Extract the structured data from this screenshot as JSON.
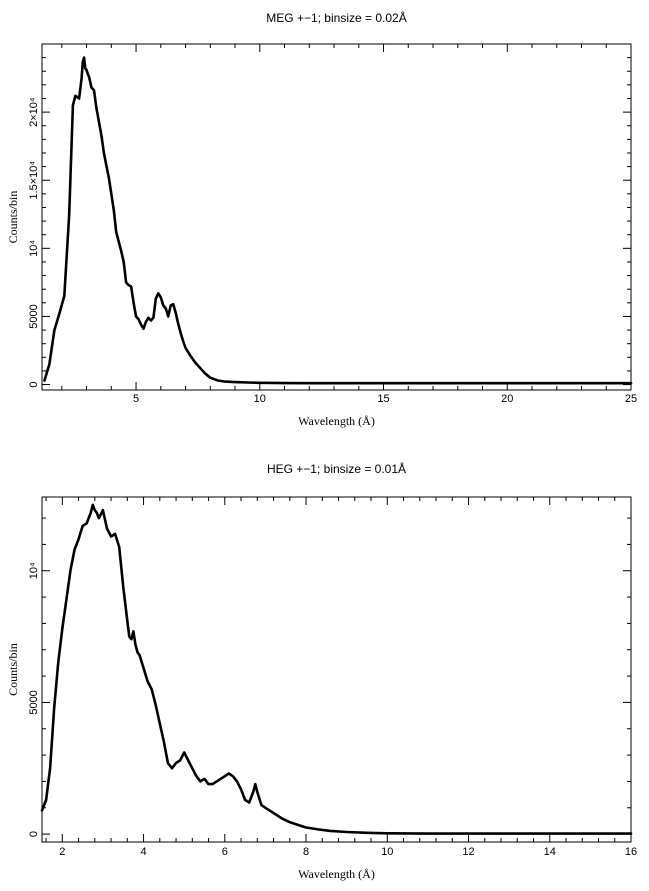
{
  "chart_data": [
    {
      "type": "line",
      "title": "MEG +−1; binsize = 0.02Å",
      "xlabel": "Wavelength (Å)",
      "ylabel": "Counts/bin",
      "xlim": [
        1.2,
        25
      ],
      "ylim": [
        -400,
        25000
      ],
      "xticks": [
        {
          "value": 5,
          "label": "5"
        },
        {
          "value": 10,
          "label": "10"
        },
        {
          "value": 15,
          "label": "15"
        },
        {
          "value": 20,
          "label": "20"
        },
        {
          "value": 25,
          "label": "25"
        }
      ],
      "yticks": [
        {
          "value": 0,
          "label": "0"
        },
        {
          "value": 5000,
          "label": "5000"
        },
        {
          "value": 10000,
          "label": "10⁴"
        },
        {
          "value": 15000,
          "label": "1.5×10⁴"
        },
        {
          "value": 20000,
          "label": "2×10⁴"
        }
      ],
      "color": "#000000",
      "series": [
        {
          "x": [
            1.3,
            1.5,
            1.7,
            1.9,
            2.1,
            2.3,
            2.45,
            2.55,
            2.7,
            2.8,
            2.85,
            2.9,
            2.95,
            3.0,
            3.05,
            3.1,
            3.2,
            3.3,
            3.4,
            3.5,
            3.6,
            3.7,
            3.8,
            3.9,
            4.0,
            4.1,
            4.2,
            4.3,
            4.4,
            4.5,
            4.6,
            4.7,
            4.8,
            4.9,
            5.0,
            5.1,
            5.2,
            5.3,
            5.4,
            5.5,
            5.6,
            5.7,
            5.8,
            5.9,
            6.0,
            6.1,
            6.2,
            6.3,
            6.4,
            6.5,
            6.6,
            6.7,
            6.8,
            6.9,
            7.0,
            7.2,
            7.4,
            7.6,
            7.8,
            8.0,
            8.3,
            8.6,
            9.0,
            9.5,
            10.0,
            11.0,
            12.0,
            14.0,
            16.0,
            18.0,
            20.0,
            22.0,
            24.0,
            25.0
          ],
          "y": [
            300,
            1500,
            4000,
            5200,
            6500,
            12500,
            20500,
            21200,
            21000,
            22500,
            23700,
            24000,
            23200,
            23100,
            22800,
            22600,
            21800,
            21600,
            20300,
            19300,
            18300,
            17000,
            16100,
            15200,
            14000,
            12800,
            11200,
            10500,
            9800,
            9000,
            7500,
            7300,
            7200,
            6000,
            5000,
            4800,
            4400,
            4100,
            4600,
            4900,
            4700,
            4900,
            6300,
            6700,
            6400,
            5800,
            5600,
            5000,
            5800,
            5900,
            5300,
            4500,
            3800,
            3200,
            2700,
            2100,
            1600,
            1200,
            800,
            500,
            300,
            220,
            180,
            150,
            130,
            110,
            100,
            100,
            100,
            100,
            100,
            100,
            100,
            100
          ]
        }
      ]
    },
    {
      "type": "line",
      "title": "HEG +−1; binsize = 0.01Å",
      "xlabel": "Wavelength (Å)",
      "ylabel": "Counts/bin",
      "xlim": [
        1.5,
        16
      ],
      "ylim": [
        -300,
        12800
      ],
      "xticks": [
        {
          "value": 2,
          "label": "2"
        },
        {
          "value": 4,
          "label": "4"
        },
        {
          "value": 6,
          "label": "6"
        },
        {
          "value": 8,
          "label": "8"
        },
        {
          "value": 10,
          "label": "10"
        },
        {
          "value": 12,
          "label": "12"
        },
        {
          "value": 14,
          "label": "14"
        },
        {
          "value": 16,
          "label": "16"
        }
      ],
      "yticks": [
        {
          "value": 0,
          "label": "0"
        },
        {
          "value": 5000,
          "label": "5000"
        },
        {
          "value": 10000,
          "label": "10⁴"
        }
      ],
      "color": "#000000",
      "series": [
        {
          "x": [
            1.5,
            1.6,
            1.7,
            1.8,
            1.9,
            2.0,
            2.1,
            2.2,
            2.3,
            2.4,
            2.5,
            2.6,
            2.7,
            2.75,
            2.8,
            2.85,
            2.9,
            3.0,
            3.1,
            3.2,
            3.3,
            3.4,
            3.5,
            3.6,
            3.65,
            3.7,
            3.75,
            3.8,
            3.85,
            3.9,
            4.0,
            4.1,
            4.2,
            4.3,
            4.4,
            4.5,
            4.6,
            4.7,
            4.8,
            4.9,
            5.0,
            5.1,
            5.2,
            5.3,
            5.4,
            5.5,
            5.6,
            5.7,
            5.8,
            5.9,
            6.0,
            6.1,
            6.2,
            6.3,
            6.4,
            6.5,
            6.6,
            6.7,
            6.75,
            6.8,
            6.9,
            7.0,
            7.2,
            7.4,
            7.6,
            7.8,
            8.0,
            8.3,
            8.6,
            9.0,
            9.5,
            10.0,
            11.0,
            12.0,
            13.0,
            14.0,
            15.0,
            16.0
          ],
          "y": [
            900,
            1300,
            2500,
            4800,
            6500,
            7800,
            8900,
            10000,
            10800,
            11200,
            11700,
            11800,
            12200,
            12500,
            12300,
            12200,
            12000,
            12300,
            11600,
            11300,
            11400,
            10900,
            9400,
            8100,
            7500,
            7400,
            7700,
            7200,
            6900,
            6800,
            6300,
            5800,
            5500,
            4900,
            4200,
            3500,
            2700,
            2500,
            2700,
            2800,
            3100,
            2800,
            2500,
            2200,
            2000,
            2100,
            1900,
            1900,
            2000,
            2100,
            2200,
            2300,
            2200,
            2000,
            1700,
            1300,
            1200,
            1600,
            1900,
            1600,
            1100,
            1000,
            800,
            600,
            450,
            350,
            250,
            180,
            120,
            80,
            50,
            30,
            20,
            20,
            20,
            20,
            20,
            20
          ]
        }
      ]
    }
  ]
}
